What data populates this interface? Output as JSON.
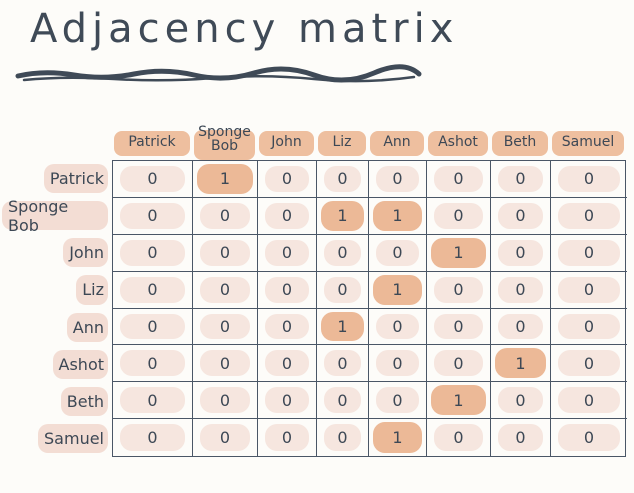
{
  "title": "Adjacency matrix",
  "columns": [
    "Patrick",
    "Sponge Bob",
    "John",
    "Liz",
    "Ann",
    "Ashot",
    "Beth",
    "Samuel"
  ],
  "rows": [
    "Patrick",
    "Sponge Bob",
    "John",
    "Liz",
    "Ann",
    "Ashot",
    "Beth",
    "Samuel"
  ],
  "matrix": [
    [
      0,
      1,
      0,
      0,
      0,
      0,
      0,
      0
    ],
    [
      0,
      0,
      0,
      1,
      1,
      0,
      0,
      0
    ],
    [
      0,
      0,
      0,
      0,
      0,
      1,
      0,
      0
    ],
    [
      0,
      0,
      0,
      0,
      1,
      0,
      0,
      0
    ],
    [
      0,
      0,
      0,
      1,
      0,
      0,
      0,
      0
    ],
    [
      0,
      0,
      0,
      0,
      0,
      0,
      1,
      0
    ],
    [
      0,
      0,
      0,
      0,
      0,
      1,
      0,
      0
    ],
    [
      0,
      0,
      0,
      0,
      1,
      0,
      0,
      0
    ]
  ],
  "colors": {
    "ink": "#3d4855",
    "label_highlight": "#eebf9f",
    "row_label_highlight": "#f3ddd4",
    "cell_zero": "#f6e6df",
    "cell_one": "#ecb997"
  }
}
